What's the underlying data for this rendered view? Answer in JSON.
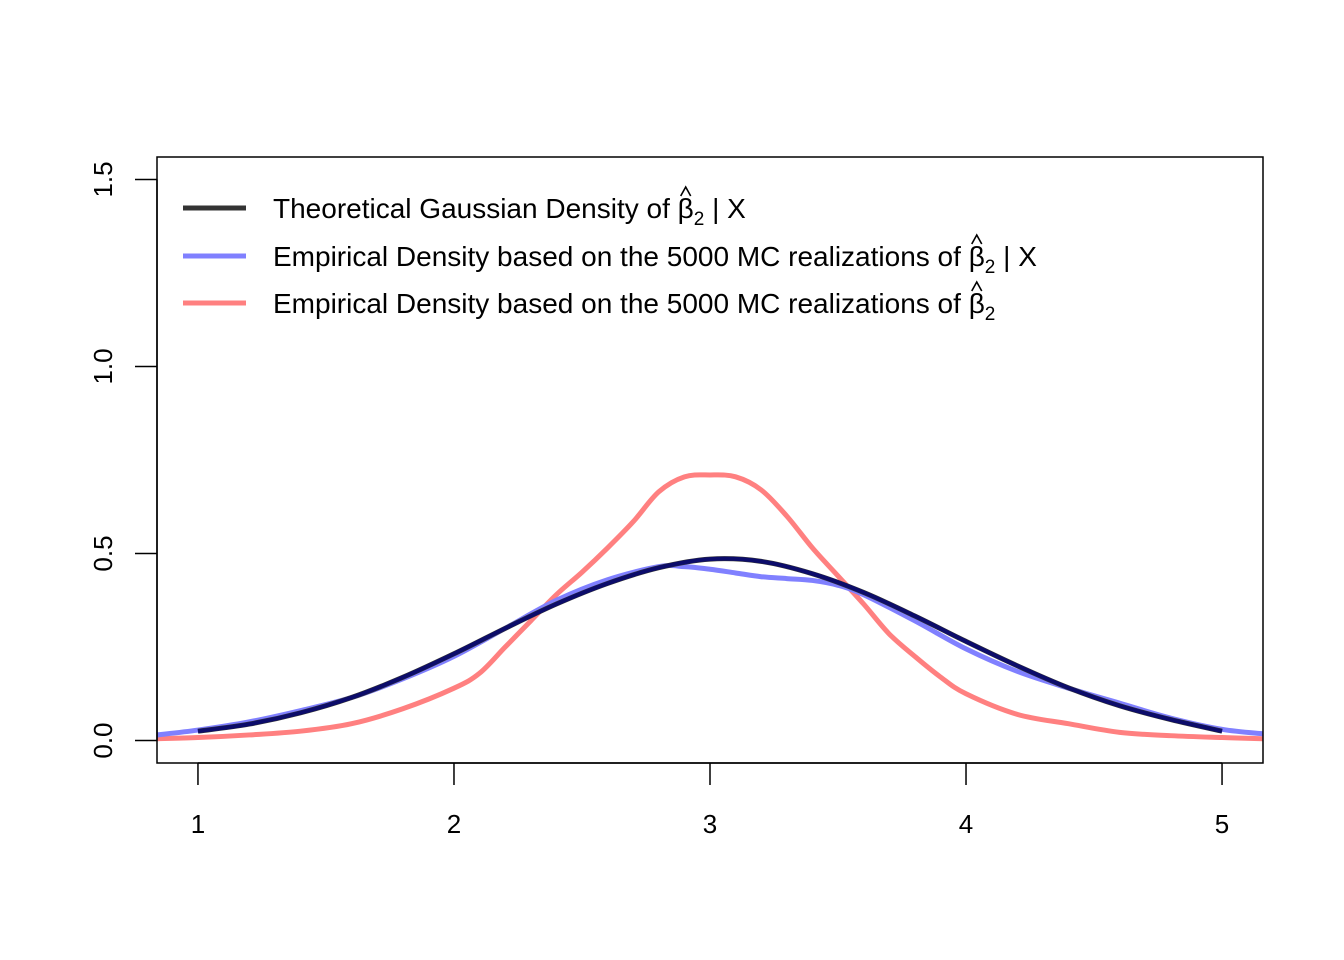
{
  "chart_data": {
    "type": "line",
    "title": "",
    "xlabel": "",
    "ylabel": "",
    "xlim": [
      0.84,
      5.16
    ],
    "ylim": [
      -0.06,
      1.56
    ],
    "x_ticks": [
      "1",
      "2",
      "3",
      "4",
      "5"
    ],
    "y_ticks": [
      "0.0",
      "0.5",
      "1.0",
      "1.5"
    ],
    "grid": false,
    "legend_position": "top-left",
    "series": [
      {
        "name": "Theoretical Gaussian Density of β̂2 | X",
        "legend_text": "Theoretical Gaussian Density of ",
        "legend_suffix": " | X",
        "color": "#333333",
        "x": [
          1.0,
          1.2,
          1.4,
          1.6,
          1.8,
          2.0,
          2.2,
          2.4,
          2.6,
          2.8,
          3.0,
          3.2,
          3.4,
          3.6,
          3.8,
          4.0,
          4.2,
          4.4,
          4.6,
          4.8,
          5.0
        ],
        "y": [
          0.025,
          0.044,
          0.074,
          0.115,
          0.169,
          0.232,
          0.3,
          0.365,
          0.42,
          0.462,
          0.485,
          0.479,
          0.446,
          0.396,
          0.333,
          0.265,
          0.2,
          0.141,
          0.093,
          0.056,
          0.025
        ]
      },
      {
        "name": "Empirical Density based on the 5000 MC realizations of β̂2 | X",
        "legend_text": "Empirical Density based on the 5000 MC realizations of ",
        "legend_suffix": " | X",
        "color": "#8080ff",
        "x": [
          0.84,
          1.0,
          1.2,
          1.4,
          1.6,
          1.8,
          2.0,
          2.2,
          2.4,
          2.6,
          2.8,
          2.9,
          3.0,
          3.1,
          3.2,
          3.3,
          3.4,
          3.5,
          3.6,
          3.8,
          4.0,
          4.2,
          4.4,
          4.6,
          4.8,
          5.0,
          5.16
        ],
        "y": [
          0.015,
          0.028,
          0.05,
          0.08,
          0.115,
          0.165,
          0.225,
          0.3,
          0.375,
          0.43,
          0.465,
          0.465,
          0.458,
          0.448,
          0.438,
          0.433,
          0.428,
          0.415,
          0.39,
          0.32,
          0.245,
          0.185,
          0.14,
          0.1,
          0.06,
          0.03,
          0.018
        ]
      },
      {
        "name": "Empirical Density based on the 5000 MC realizations of β̂2",
        "legend_text": "Empirical Density based on the 5000 MC realizations of ",
        "legend_suffix": "",
        "color": "#ff8080",
        "x": [
          0.84,
          1.0,
          1.2,
          1.4,
          1.6,
          1.8,
          2.0,
          2.1,
          2.2,
          2.3,
          2.4,
          2.5,
          2.6,
          2.7,
          2.8,
          2.9,
          3.0,
          3.1,
          3.2,
          3.3,
          3.4,
          3.5,
          3.6,
          3.7,
          3.8,
          3.9,
          4.0,
          4.2,
          4.4,
          4.6,
          4.8,
          5.0,
          5.16
        ],
        "y": [
          0.005,
          0.008,
          0.015,
          0.025,
          0.045,
          0.085,
          0.14,
          0.18,
          0.25,
          0.32,
          0.39,
          0.45,
          0.515,
          0.585,
          0.665,
          0.705,
          0.71,
          0.705,
          0.67,
          0.6,
          0.515,
          0.44,
          0.365,
          0.285,
          0.225,
          0.17,
          0.125,
          0.07,
          0.045,
          0.022,
          0.013,
          0.008,
          0.005
        ]
      }
    ],
    "overlay": {
      "color": "#00007f"
    }
  }
}
